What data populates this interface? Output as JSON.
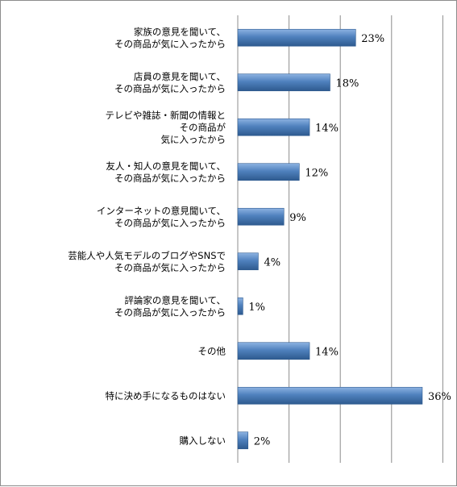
{
  "chart_data": {
    "type": "bar",
    "orientation": "horizontal",
    "categories": [
      "家族の意見を聞いて、\nその商品が気に入ったから",
      "店員の意見を聞いて、\nその商品が気に入ったから",
      "テレビや雑誌・新聞の情報と\nその商品が\n気に入ったから",
      "友人・知人の意見を聞いて、\nその商品が気に入ったから",
      "インターネットの意見聞いて、\nその商品が気に入ったから",
      "芸能人や人気モデルのブログやSNSで\nその商品が気に入ったから",
      "評論家の意見を聞いて、\nその商品が気に入ったから",
      "その他",
      "特に決め手になるものはない",
      "購入しない"
    ],
    "values": [
      23,
      18,
      14,
      12,
      9,
      4,
      1,
      14,
      36,
      2
    ],
    "value_labels": [
      "23%",
      "18%",
      "14%",
      "12%",
      "9%",
      "4%",
      "1%",
      "14%",
      "36%",
      "2%"
    ],
    "xlim": [
      0,
      40
    ],
    "grid": true,
    "colors": {
      "bar": "#4f81bd",
      "bar_dark": "#2e5a8f",
      "bar_light": "#8db3e2",
      "grid": "#8c8c8c"
    }
  }
}
